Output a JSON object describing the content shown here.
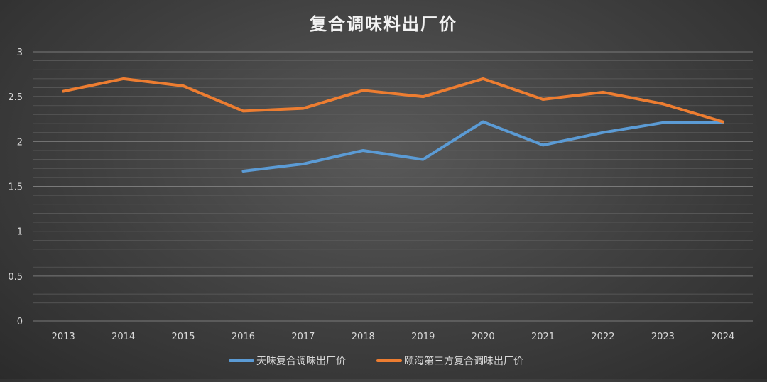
{
  "chart_data": {
    "type": "line",
    "title": "复合调味料出厂价",
    "x": [
      "2013",
      "2014",
      "2015",
      "2016",
      "2017",
      "2018",
      "2019",
      "2020",
      "2021",
      "2022",
      "2023",
      "2024"
    ],
    "ylim": [
      0,
      3
    ],
    "yticks": [
      "0",
      "0.5",
      "1",
      "1.5",
      "2",
      "2.5",
      "3"
    ],
    "ytick_values": [
      0,
      0.5,
      1,
      1.5,
      2,
      2.5,
      3
    ],
    "grid": true,
    "legend_position": "bottom",
    "series": [
      {
        "name": "天味复合调味出厂价",
        "color": "#5b9bd5",
        "values": [
          null,
          null,
          null,
          1.67,
          1.75,
          1.9,
          1.8,
          2.22,
          1.96,
          2.1,
          2.21,
          2.21
        ]
      },
      {
        "name": "颐海第三方复合调味出厂价",
        "color": "#ed7d31",
        "values": [
          2.56,
          2.7,
          2.62,
          2.34,
          2.37,
          2.57,
          2.5,
          2.7,
          2.47,
          2.55,
          2.42,
          2.22
        ]
      }
    ]
  }
}
